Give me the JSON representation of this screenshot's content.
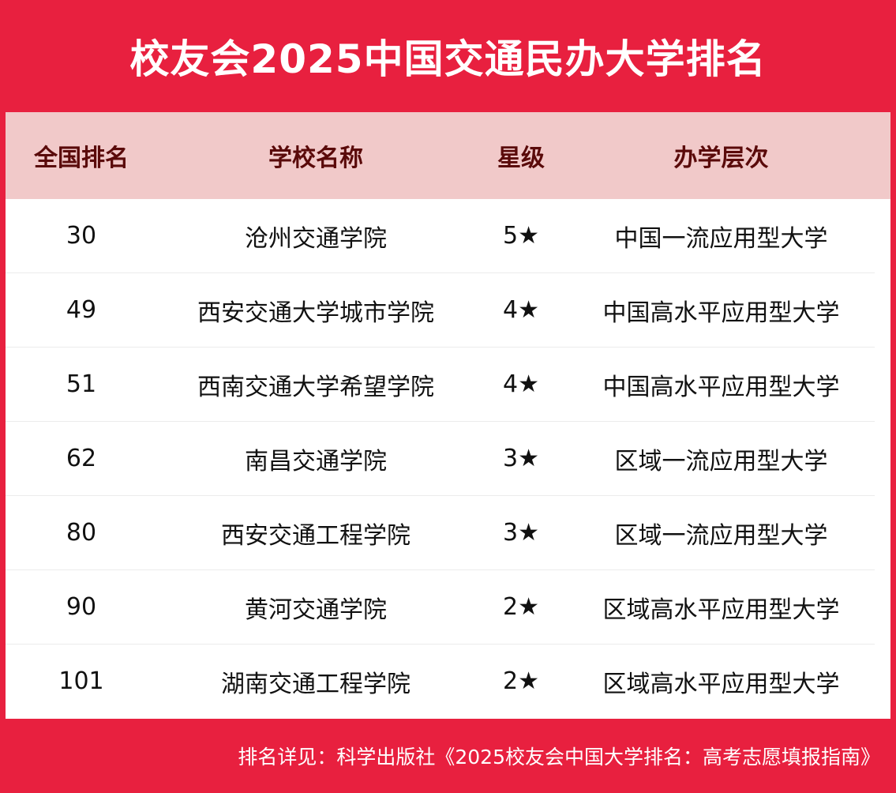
{
  "title": "校友会2025中国交通民办大学排名",
  "columns": [
    "全国排名",
    "学校名称",
    "星级",
    "办学层次"
  ],
  "rows": [
    [
      "30",
      "沧州交通学院",
      "5★",
      "中国一流应用型大学"
    ],
    [
      "49",
      "西安交通大学城市学院",
      "4★",
      "中国高水平应用型大学"
    ],
    [
      "51",
      "西南交通大学希望学院",
      "4★",
      "中国高水平应用型大学"
    ],
    [
      "62",
      "南昌交通学院",
      "3★",
      "区域一流应用型大学"
    ],
    [
      "80",
      "西安交通工程学院",
      "3★",
      "区域一流应用型大学"
    ],
    [
      "90",
      "黄河交通学院",
      "2★",
      "区域高水平应用型大学"
    ],
    [
      "101",
      "湖南交通工程学院",
      "2★",
      "区域高水平应用型大学"
    ]
  ],
  "footer": "排名详见：科学出版社《2025校友会中国大学排名：高考志愿填报指南》",
  "colors": {
    "background": "#e8203f",
    "header_bg": "#f1c9c9",
    "header_text": "#5a0a0a"
  }
}
